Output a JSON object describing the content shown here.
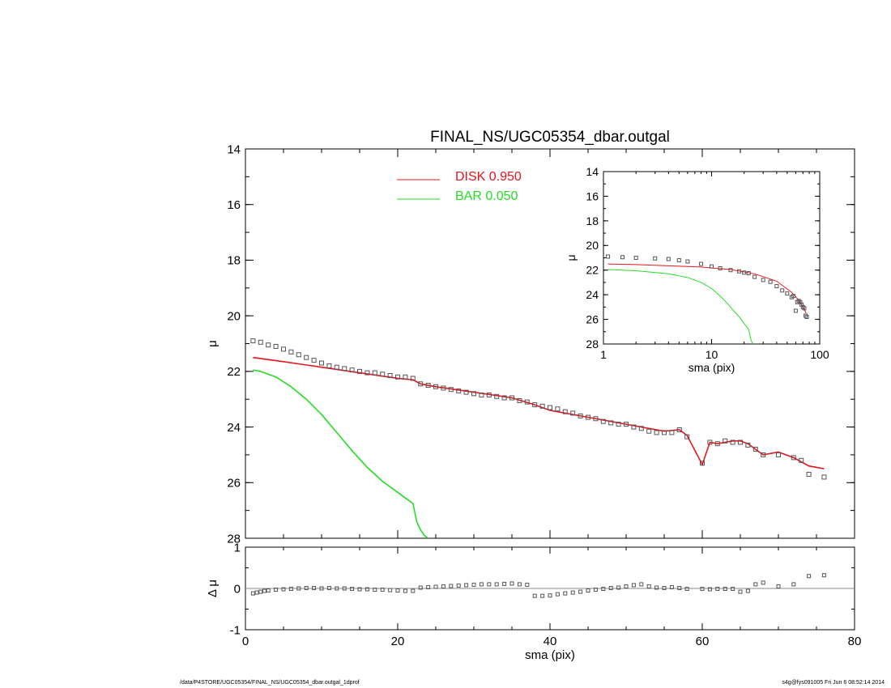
{
  "title": "FINAL_NS/UGC05354_dbar.outgal",
  "footer": {
    "left": "/data/P4STORE/UGC05354/FINAL_NS/UGC05354_dbar.outgal_1dprof",
    "right": "s4g@fys091005  Fri Jun  6 08:52:14 2014"
  },
  "colors": {
    "disk": "#e8141c",
    "bar": "#22dd22",
    "data": "#555555"
  },
  "chart_data": [
    {
      "panel": "main",
      "type": "line",
      "ylabel": "μ",
      "xlim": [
        0,
        80
      ],
      "ylim": [
        28,
        14
      ],
      "y_inverted": true,
      "xticks": [
        0,
        20,
        40,
        60,
        80
      ],
      "yticks": [
        14,
        16,
        18,
        20,
        22,
        24,
        26,
        28
      ],
      "legend": {
        "placement": "top-center",
        "entries": [
          {
            "label": "DISK",
            "value": "0.950",
            "color": "#e8141c"
          },
          {
            "label": "BAR",
            "value": "0.050",
            "color": "#22dd22"
          }
        ]
      },
      "series": [
        {
          "name": "DISK",
          "x": [
            1,
            5,
            10,
            15,
            20,
            22,
            23,
            25,
            30,
            35,
            38,
            40,
            45,
            50,
            52,
            55,
            57,
            58,
            60,
            61,
            62,
            64,
            65,
            66,
            67,
            68,
            70,
            72,
            74,
            76
          ],
          "y": [
            21.5,
            21.65,
            21.85,
            22.05,
            22.25,
            22.3,
            22.45,
            22.55,
            22.75,
            22.95,
            23.2,
            23.4,
            23.65,
            23.9,
            24.0,
            24.15,
            24.1,
            24.3,
            25.35,
            24.55,
            24.6,
            24.5,
            24.5,
            24.6,
            24.8,
            25.0,
            24.9,
            25.1,
            25.4,
            25.5
          ]
        },
        {
          "name": "BAR",
          "x": [
            1,
            2,
            4,
            6,
            8,
            10,
            12,
            14,
            16,
            18,
            20,
            21,
            22,
            22.5,
            23,
            23.5,
            24
          ],
          "y": [
            21.95,
            22.0,
            22.2,
            22.55,
            23.0,
            23.55,
            24.2,
            24.85,
            25.45,
            25.95,
            26.35,
            26.55,
            26.75,
            27.4,
            27.7,
            27.9,
            28.0
          ]
        },
        {
          "name": "data",
          "x": [
            1,
            2,
            3,
            4,
            5,
            6,
            7,
            8,
            9,
            10,
            11,
            12,
            13,
            14,
            15,
            16,
            17,
            18,
            19,
            20,
            21,
            22,
            23,
            24,
            25,
            26,
            27,
            28,
            29,
            30,
            31,
            32,
            33,
            34,
            35,
            36,
            37,
            38,
            39,
            40,
            41,
            42,
            43,
            44,
            45,
            46,
            47,
            48,
            49,
            50,
            51,
            52,
            53,
            54,
            55,
            56,
            57,
            58,
            60,
            61,
            62,
            63,
            64,
            65,
            66,
            67,
            68,
            70,
            72,
            73,
            74,
            76
          ],
          "y": [
            20.9,
            20.95,
            21.05,
            21.1,
            21.2,
            21.3,
            21.4,
            21.5,
            21.6,
            21.7,
            21.8,
            21.85,
            21.9,
            21.95,
            22.0,
            22.05,
            22.05,
            22.1,
            22.15,
            22.2,
            22.2,
            22.25,
            22.45,
            22.5,
            22.55,
            22.6,
            22.65,
            22.7,
            22.75,
            22.8,
            22.85,
            22.85,
            22.9,
            22.95,
            22.95,
            23.05,
            23.1,
            23.2,
            23.25,
            23.3,
            23.35,
            23.45,
            23.5,
            23.6,
            23.65,
            23.7,
            23.8,
            23.85,
            23.9,
            23.9,
            24.0,
            24.05,
            24.15,
            24.2,
            24.2,
            24.2,
            24.1,
            24.35,
            25.3,
            24.55,
            24.6,
            24.5,
            24.55,
            24.55,
            24.65,
            24.8,
            25.0,
            25.0,
            25.1,
            25.2,
            25.7,
            25.8
          ]
        }
      ]
    },
    {
      "panel": "residual",
      "type": "scatter",
      "xlabel": "sma (pix)",
      "ylabel": "Δ μ",
      "xlim": [
        0,
        80
      ],
      "ylim": [
        -1,
        1
      ],
      "xticks": [
        0,
        20,
        40,
        60,
        80
      ],
      "yticks": [
        -1,
        0,
        1
      ],
      "series": [
        {
          "name": "residual",
          "x": [
            1,
            1.5,
            2,
            2.5,
            3,
            4,
            5,
            6,
            7,
            8,
            9,
            10,
            11,
            12,
            13,
            14,
            15,
            16,
            17,
            18,
            19,
            20,
            21,
            22,
            23,
            24,
            25,
            26,
            27,
            28,
            29,
            30,
            31,
            32,
            33,
            34,
            35,
            36,
            37,
            38,
            39,
            40,
            41,
            42,
            43,
            44,
            45,
            46,
            47,
            48,
            49,
            50,
            51,
            52,
            53,
            54,
            55,
            56,
            57,
            58,
            60,
            61,
            62,
            63,
            64,
            65,
            66,
            67,
            68,
            70,
            72,
            74,
            76
          ],
          "y": [
            -0.12,
            -0.1,
            -0.08,
            -0.06,
            -0.05,
            -0.03,
            -0.02,
            -0.01,
            0.0,
            0.01,
            0.01,
            0.0,
            0.01,
            0.0,
            0.0,
            -0.01,
            -0.02,
            -0.02,
            -0.03,
            -0.03,
            -0.04,
            -0.05,
            -0.06,
            -0.06,
            0.02,
            0.03,
            0.04,
            0.05,
            0.06,
            0.07,
            0.08,
            0.09,
            0.1,
            0.1,
            0.1,
            0.11,
            0.12,
            0.1,
            0.09,
            -0.18,
            -0.18,
            -0.17,
            -0.14,
            -0.12,
            -0.1,
            -0.08,
            -0.05,
            -0.03,
            -0.01,
            0.01,
            0.02,
            0.05,
            0.08,
            0.1,
            0.05,
            0.02,
            0.01,
            0.03,
            0.01,
            -0.01,
            -0.01,
            -0.02,
            -0.01,
            -0.01,
            -0.01,
            -0.08,
            -0.06,
            0.1,
            0.14,
            0.05,
            0.1,
            0.3,
            0.32
          ]
        }
      ]
    },
    {
      "panel": "inset",
      "type": "line",
      "xlabel": "sma (pix)",
      "ylabel": "μ",
      "xscale": "log",
      "xlim": [
        1,
        100
      ],
      "ylim": [
        28,
        14
      ],
      "y_inverted": true,
      "xticks": [
        1,
        10,
        100
      ],
      "yticks": [
        14,
        16,
        18,
        20,
        22,
        24,
        26,
        28
      ],
      "series": [
        {
          "name": "DISK",
          "x": [
            1.1,
            2,
            4,
            8,
            15,
            25,
            40,
            55,
            65,
            75
          ],
          "y": [
            21.5,
            21.55,
            21.65,
            21.75,
            21.95,
            22.3,
            22.9,
            23.8,
            24.5,
            25.5
          ]
        },
        {
          "name": "BAR",
          "x": [
            1.1,
            2,
            4,
            6,
            8,
            10,
            12,
            14,
            16,
            18,
            20,
            22,
            23,
            24
          ],
          "y": [
            21.95,
            22.05,
            22.3,
            22.6,
            23.0,
            23.5,
            24.1,
            24.7,
            25.3,
            25.8,
            26.35,
            26.8,
            27.6,
            28.0
          ]
        },
        {
          "name": "data",
          "x": [
            1.1,
            1.5,
            2,
            3,
            4,
            5,
            6,
            8,
            10,
            12,
            15,
            18,
            20,
            22,
            25,
            30,
            35,
            40,
            45,
            50,
            55,
            57,
            60,
            62,
            64,
            66,
            68,
            70,
            72,
            74,
            76
          ],
          "y": [
            20.9,
            20.95,
            21.0,
            21.05,
            21.1,
            21.2,
            21.3,
            21.5,
            21.7,
            21.85,
            22.0,
            22.1,
            22.2,
            22.25,
            22.55,
            22.8,
            22.95,
            23.3,
            23.65,
            23.9,
            24.2,
            24.1,
            25.3,
            24.6,
            24.5,
            24.6,
            24.8,
            25.0,
            25.1,
            25.7,
            25.8
          ]
        }
      ]
    }
  ]
}
